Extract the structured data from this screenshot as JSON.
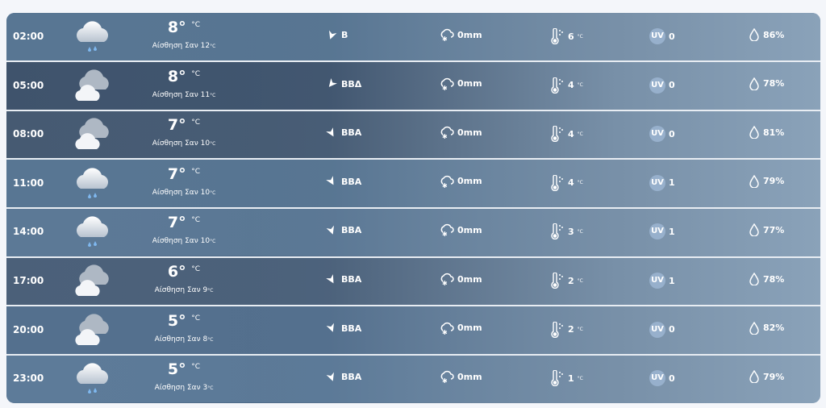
{
  "colors": {
    "row_bg": "#5d7a97",
    "separator": "#e8edf3",
    "uv_badge": "#a0b9d7",
    "rain_drop": "#7fb8ef"
  },
  "units": {
    "temp": "°C",
    "feels_prefix": "Αίσθηση Σαν",
    "uv_label": "UV"
  },
  "rows": [
    {
      "time": "02:00",
      "icon": "rain-cloud-icon",
      "temp": "8",
      "feels": "12",
      "wind_dir": "Β",
      "wind_angle": 200,
      "precip": "0mm",
      "dew": "6",
      "uv": "0",
      "humidity": "86%",
      "shade": "#587693"
    },
    {
      "time": "05:00",
      "icon": "partly-cloudy-icon",
      "temp": "8",
      "feels": "11",
      "wind_dir": "ΒΒΔ",
      "wind_angle": 220,
      "precip": "0mm",
      "dew": "4",
      "uv": "0",
      "humidity": "78%",
      "shade": "#3f536c"
    },
    {
      "time": "08:00",
      "icon": "partly-cloudy-icon",
      "temp": "7",
      "feels": "10",
      "wind_dir": "ΒΒΑ",
      "wind_angle": 150,
      "precip": "0mm",
      "dew": "4",
      "uv": "0",
      "humidity": "81%",
      "shade": "#465a72"
    },
    {
      "time": "11:00",
      "icon": "rain-cloud-icon",
      "temp": "7",
      "feels": "10",
      "wind_dir": "ΒΒΑ",
      "wind_angle": 150,
      "precip": "0mm",
      "dew": "4",
      "uv": "1",
      "humidity": "79%",
      "shade": "#587693"
    },
    {
      "time": "14:00",
      "icon": "rain-cloud-icon",
      "temp": "7",
      "feels": "10",
      "wind_dir": "ΒΒΑ",
      "wind_angle": 160,
      "precip": "0mm",
      "dew": "3",
      "uv": "1",
      "humidity": "77%",
      "shade": "#5c7996"
    },
    {
      "time": "17:00",
      "icon": "partly-cloudy-icon",
      "temp": "6",
      "feels": "9",
      "wind_dir": "ΒΒΑ",
      "wind_angle": 150,
      "precip": "0mm",
      "dew": "2",
      "uv": "1",
      "humidity": "78%",
      "shade": "#4b6079"
    },
    {
      "time": "20:00",
      "icon": "partly-cloudy-icon",
      "temp": "5",
      "feels": "8",
      "wind_dir": "ΒΒΑ",
      "wind_angle": 160,
      "precip": "0mm",
      "dew": "2",
      "uv": "0",
      "humidity": "82%",
      "shade": "#54708e"
    },
    {
      "time": "23:00",
      "icon": "rain-cloud-icon",
      "temp": "5",
      "feels": "3",
      "wind_dir": "ΒΒΑ",
      "wind_angle": 160,
      "precip": "0mm",
      "dew": "1",
      "uv": "0",
      "humidity": "79%",
      "shade": "#5d7b99"
    }
  ]
}
